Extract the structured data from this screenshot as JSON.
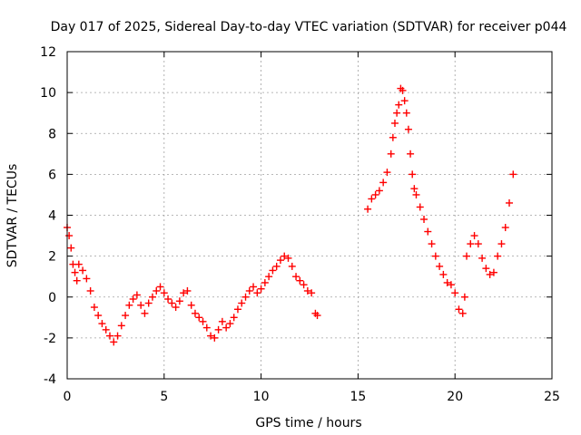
{
  "chart_data": {
    "type": "scatter",
    "title": "Day 017 of 2025, Sidereal Day-to-day VTEC variation (SDTVAR) for receiver p044",
    "xlabel": "GPS time / hours",
    "ylabel": "SDTVAR / TECUs",
    "xlim": [
      0,
      25
    ],
    "ylim": [
      -4,
      12
    ],
    "xticks": [
      0,
      5,
      10,
      15,
      20,
      25
    ],
    "yticks": [
      -4,
      -2,
      0,
      2,
      4,
      6,
      8,
      10,
      12
    ],
    "grid": true,
    "marker": "+",
    "color": "#ff0000",
    "series": [
      {
        "name": "SDTVAR",
        "x": [
          0.0,
          0.1,
          0.2,
          0.3,
          0.4,
          0.5,
          0.6,
          0.8,
          1.0,
          1.2,
          1.4,
          1.6,
          1.8,
          2.0,
          2.2,
          2.4,
          2.6,
          2.8,
          3.0,
          3.2,
          3.4,
          3.6,
          3.8,
          4.0,
          4.2,
          4.4,
          4.6,
          4.8,
          5.0,
          5.2,
          5.4,
          5.6,
          5.8,
          6.0,
          6.2,
          6.4,
          6.6,
          6.8,
          7.0,
          7.2,
          7.4,
          7.6,
          7.8,
          8.0,
          8.2,
          8.4,
          8.6,
          8.8,
          9.0,
          9.2,
          9.4,
          9.6,
          9.8,
          10.0,
          10.2,
          10.4,
          10.6,
          10.8,
          11.0,
          11.2,
          11.4,
          11.6,
          11.8,
          12.0,
          12.2,
          12.4,
          12.6,
          12.8,
          12.9,
          15.5,
          15.7,
          15.9,
          16.1,
          16.3,
          16.5,
          16.7,
          16.8,
          16.9,
          17.0,
          17.1,
          17.2,
          17.3,
          17.4,
          17.5,
          17.6,
          17.7,
          17.8,
          17.9,
          18.0,
          18.2,
          18.4,
          18.6,
          18.8,
          19.0,
          19.2,
          19.4,
          19.6,
          19.8,
          20.0,
          20.2,
          20.4,
          20.5,
          20.6,
          20.8,
          21.0,
          21.2,
          21.4,
          21.6,
          21.8,
          22.0,
          22.2,
          22.4,
          22.6,
          22.8,
          23.0
        ],
        "y": [
          3.4,
          3.0,
          2.4,
          1.6,
          1.2,
          0.8,
          1.6,
          1.3,
          0.9,
          0.3,
          -0.5,
          -0.9,
          -1.3,
          -1.6,
          -1.9,
          -2.2,
          -1.9,
          -1.4,
          -0.9,
          -0.4,
          -0.1,
          0.1,
          -0.4,
          -0.8,
          -0.3,
          0.0,
          0.3,
          0.5,
          0.2,
          -0.1,
          -0.3,
          -0.5,
          -0.2,
          0.2,
          0.3,
          -0.4,
          -0.8,
          -1.0,
          -1.2,
          -1.5,
          -1.9,
          -2.0,
          -1.6,
          -1.2,
          -1.5,
          -1.3,
          -1.0,
          -0.6,
          -0.3,
          0.0,
          0.3,
          0.5,
          0.2,
          0.4,
          0.7,
          1.0,
          1.3,
          1.5,
          1.8,
          2.0,
          1.9,
          1.5,
          1.0,
          0.8,
          0.6,
          0.3,
          0.2,
          -0.8,
          -0.9,
          4.3,
          4.8,
          5.0,
          5.2,
          5.6,
          6.1,
          7.0,
          7.8,
          8.5,
          9.0,
          9.4,
          10.2,
          10.1,
          9.6,
          9.0,
          8.2,
          7.0,
          6.0,
          5.3,
          5.0,
          4.4,
          3.8,
          3.2,
          2.6,
          2.0,
          1.5,
          1.1,
          0.7,
          0.6,
          0.2,
          -0.6,
          -0.8,
          0.0,
          2.0,
          2.6,
          3.0,
          2.6,
          1.9,
          1.4,
          1.1,
          1.2,
          2.0,
          2.6,
          3.4,
          4.6,
          6.0
        ]
      }
    ]
  }
}
